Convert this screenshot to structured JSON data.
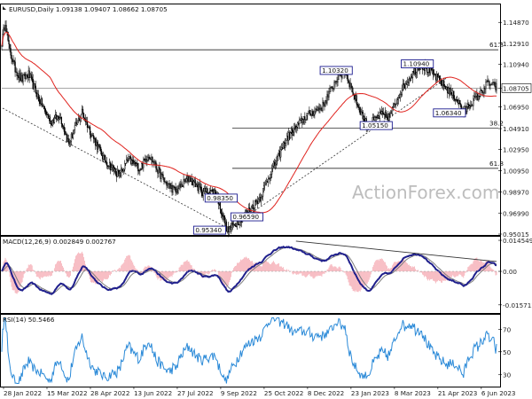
{
  "header": {
    "symbol_info": "EURUSD,Daily  1.09138 1.09407 1.08662 1.08705",
    "watermark": "ActionForex.com"
  },
  "colors": {
    "candle_up": "#ffffff",
    "candle_down": "#000000",
    "ma": "#e0241f",
    "macd_line": "#1f1f8c",
    "macd_signal": "#7d7d7d",
    "macd_hist": "#f4a3ac",
    "rsi": "#2b8ad8",
    "level_box": "#1b1b8f",
    "grid": "#000000"
  },
  "chart_data": [
    {
      "type": "candlestick",
      "name": "price",
      "ylim": [
        0.95015,
        1.1647
      ],
      "y_ticks": [
        "1.14870",
        "1.12910",
        "1.10940",
        "1.08705",
        "1.06950",
        "1.04910",
        "1.02950",
        "1.00950",
        "0.98970",
        "0.96990",
        "0.95015"
      ],
      "current_price": "1.08705",
      "horizontal_levels": [
        {
          "value": 1.123,
          "label": "61.8"
        },
        {
          "value": 1.0497,
          "label": "38.2"
        },
        {
          "value": 1.0118,
          "label": "61.8"
        },
        {
          "value": 1.08705,
          "label": ""
        }
      ],
      "annotations": [
        "0.95340",
        "0.98350",
        "0.96590",
        "1.10320",
        "1.05150",
        "1.10940",
        "1.06340"
      ],
      "ma_period": 55,
      "waypoints": [
        [
          0,
          1.13
        ],
        [
          4,
          1.15
        ],
        [
          8,
          1.125
        ],
        [
          15,
          1.105
        ],
        [
          22,
          1.095
        ],
        [
          30,
          1.1
        ],
        [
          40,
          1.08
        ],
        [
          55,
          1.055
        ],
        [
          65,
          1.062
        ],
        [
          75,
          1.035
        ],
        [
          90,
          1.065
        ],
        [
          100,
          1.045
        ],
        [
          115,
          1.02
        ],
        [
          132,
          1.005
        ],
        [
          142,
          1.02
        ],
        [
          155,
          1.012
        ],
        [
          165,
          1.025
        ],
        [
          182,
          1.0
        ],
        [
          195,
          0.99
        ],
        [
          210,
          1.003
        ],
        [
          225,
          0.99
        ],
        [
          240,
          0.99
        ],
        [
          253,
          0.9534
        ],
        [
          262,
          0.96
        ],
        [
          270,
          0.9659
        ],
        [
          280,
          0.975
        ],
        [
          290,
          0.985
        ],
        [
          300,
          1.005
        ],
        [
          320,
          1.04
        ],
        [
          340,
          1.06
        ],
        [
          360,
          1.07
        ],
        [
          375,
          1.095
        ],
        [
          385,
          1.1032
        ],
        [
          393,
          1.085
        ],
        [
          400,
          1.07
        ],
        [
          410,
          1.0515
        ],
        [
          425,
          1.062
        ],
        [
          435,
          1.06
        ],
        [
          448,
          1.085
        ],
        [
          460,
          1.1
        ],
        [
          470,
          1.1094
        ],
        [
          480,
          1.103
        ],
        [
          490,
          1.095
        ],
        [
          500,
          1.086
        ],
        [
          512,
          1.075
        ],
        [
          518,
          1.0634
        ],
        [
          525,
          1.072
        ],
        [
          535,
          1.08
        ],
        [
          545,
          1.092
        ],
        [
          555,
          1.0875
        ]
      ]
    },
    {
      "type": "line",
      "name": "MACD",
      "label": "MACD(12,26,9) 0.002849 0.002767",
      "y_ticks": [
        "0.014549",
        "0.00",
        "-0.015712"
      ],
      "ylim": [
        -0.0187,
        0.0154
      ],
      "trend_line": [
        [
          330,
          0.0142
        ],
        [
          555,
          0.0046
        ]
      ]
    },
    {
      "type": "line",
      "name": "RSI",
      "label": "RSI(14) 50.5466",
      "y_ticks": [
        "70",
        "50",
        "30"
      ],
      "ylim": [
        20,
        82
      ]
    },
    {
      "type": "axis",
      "x_ticks": [
        "28 Jan 2022",
        "15 Mar 2022",
        "28 Apr 2022",
        "13 Jun 2022",
        "27 Jul 2022",
        "9 Sep 2022",
        "25 Oct 2022",
        "8 Dec 2022",
        "23 Jan 2023",
        "8 Mar 2023",
        "21 Apr 2023",
        "6 Jun 2023"
      ]
    }
  ]
}
